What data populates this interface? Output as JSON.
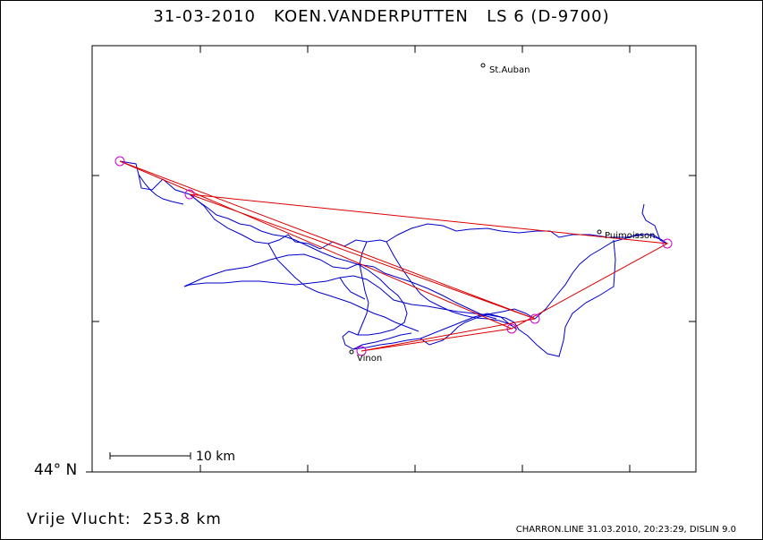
{
  "header": {
    "date": "31-03-2010",
    "pilot": "KOEN.VANDERPUTTEN",
    "glider": "LS 6 (D-9700)"
  },
  "axis": {
    "latitude_label": "44° N"
  },
  "scale_bar": {
    "label": "10 km"
  },
  "summary": {
    "distance_label": "Vrije Vlucht:",
    "distance_value": "253.8 km"
  },
  "footer": {
    "text": "CHARRON.LINE 31.03.2010, 20:23:29, DISLIN 9.0"
  },
  "places": [
    {
      "name": "St.Auban"
    },
    {
      "name": "Puimoisson"
    },
    {
      "name": "Vinon"
    }
  ],
  "colors": {
    "track": "#0000cc",
    "task": "#dd0000",
    "turnpoint": "#cc00cc",
    "frame": "#000000"
  }
}
